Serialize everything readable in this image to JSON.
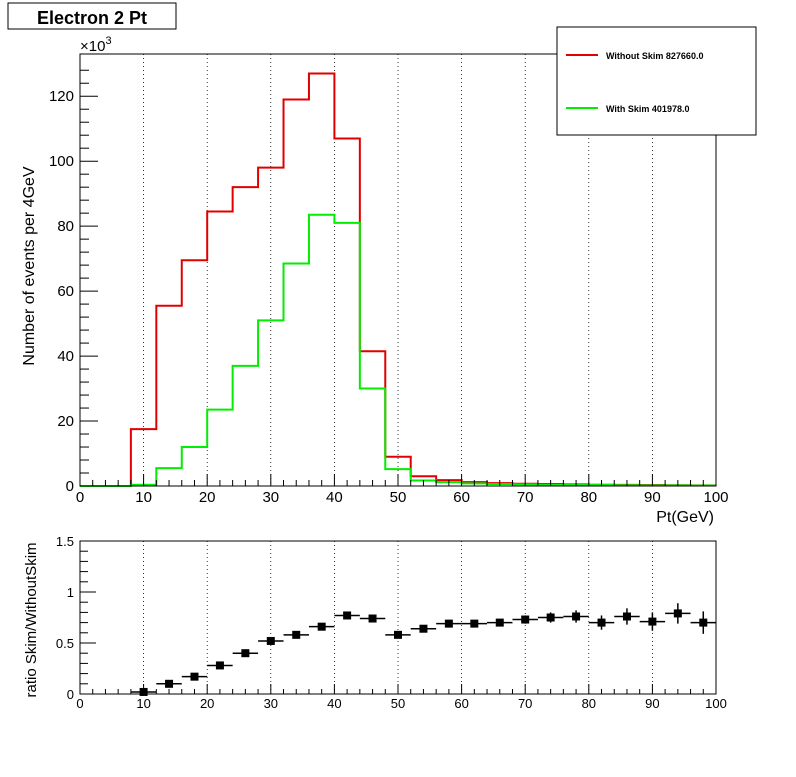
{
  "title": "Electron 2 Pt",
  "top_panel": {
    "xlabel": "Pt(GeV)",
    "ylabel": "Number of events per 4GeV",
    "exponent_base": "×10",
    "exponent_power": "3"
  },
  "bottom_panel": {
    "ylabel": "ratio Skim/WithoutSkim"
  },
  "legend": {
    "entries": [
      {
        "label": "Without Skim 827660.0",
        "color": "#e00000"
      },
      {
        "label": "With Skim 401978.0",
        "color": "#00ee00"
      }
    ]
  },
  "chart_data": [
    {
      "type": "histogram",
      "title": "Electron 2 Pt",
      "xlabel": "Pt(GeV)",
      "ylabel": "Number of events per 4GeV",
      "xlim": [
        0,
        100
      ],
      "ylim": [
        0,
        133000
      ],
      "x_ticks": [
        0,
        10,
        20,
        30,
        40,
        50,
        60,
        70,
        80,
        90,
        100
      ],
      "y_ticks": [
        0,
        20,
        40,
        60,
        80,
        100,
        120
      ],
      "y_scale_label": "×10^3",
      "grid": "vertical-dotted",
      "legend_position": "top-right",
      "bin_width": 4,
      "bin_edges": [
        0,
        4,
        8,
        12,
        16,
        20,
        24,
        28,
        32,
        36,
        40,
        44,
        48,
        52,
        56,
        60,
        64,
        68,
        72,
        76,
        80,
        84,
        88,
        92,
        96,
        100
      ],
      "series": [
        {
          "name": "Without Skim 827660.0",
          "color": "#e00000",
          "values": [
            0,
            0,
            17500,
            55500,
            69500,
            84500,
            92000,
            98000,
            119000,
            127000,
            107000,
            41500,
            9000,
            3000,
            1800,
            1200,
            900,
            700,
            600,
            500,
            400,
            350,
            300,
            250,
            200
          ]
        },
        {
          "name": "With Skim 401978.0",
          "color": "#00ee00",
          "values": [
            0,
            0,
            400,
            5500,
            12000,
            23500,
            37000,
            51000,
            68500,
            83500,
            81000,
            30000,
            5200,
            1700,
            1200,
            800,
            600,
            500,
            400,
            350,
            300,
            250,
            200,
            180,
            150
          ]
        }
      ]
    },
    {
      "type": "scatter",
      "ylabel": "ratio Skim/WithoutSkim",
      "xlim": [
        0,
        100
      ],
      "ylim": [
        0,
        1.5
      ],
      "x_ticks": [
        0,
        10,
        20,
        30,
        40,
        50,
        60,
        70,
        80,
        90,
        100
      ],
      "y_ticks": [
        0,
        0.5,
        1,
        1.5
      ],
      "grid": "vertical-dotted",
      "x_err": 2,
      "points": [
        {
          "x": 10,
          "y": 0.02,
          "yerr": 0.01
        },
        {
          "x": 14,
          "y": 0.1,
          "yerr": 0.01
        },
        {
          "x": 18,
          "y": 0.17,
          "yerr": 0.01
        },
        {
          "x": 22,
          "y": 0.28,
          "yerr": 0.01
        },
        {
          "x": 26,
          "y": 0.4,
          "yerr": 0.01
        },
        {
          "x": 30,
          "y": 0.52,
          "yerr": 0.01
        },
        {
          "x": 34,
          "y": 0.58,
          "yerr": 0.01
        },
        {
          "x": 38,
          "y": 0.66,
          "yerr": 0.01
        },
        {
          "x": 42,
          "y": 0.77,
          "yerr": 0.01
        },
        {
          "x": 46,
          "y": 0.74,
          "yerr": 0.01
        },
        {
          "x": 50,
          "y": 0.58,
          "yerr": 0.02
        },
        {
          "x": 54,
          "y": 0.64,
          "yerr": 0.02
        },
        {
          "x": 58,
          "y": 0.69,
          "yerr": 0.02
        },
        {
          "x": 62,
          "y": 0.69,
          "yerr": 0.02
        },
        {
          "x": 66,
          "y": 0.7,
          "yerr": 0.03
        },
        {
          "x": 70,
          "y": 0.73,
          "yerr": 0.04
        },
        {
          "x": 74,
          "y": 0.75,
          "yerr": 0.05
        },
        {
          "x": 78,
          "y": 0.76,
          "yerr": 0.06
        },
        {
          "x": 82,
          "y": 0.7,
          "yerr": 0.07
        },
        {
          "x": 86,
          "y": 0.76,
          "yerr": 0.08
        },
        {
          "x": 90,
          "y": 0.71,
          "yerr": 0.09
        },
        {
          "x": 94,
          "y": 0.79,
          "yerr": 0.1
        },
        {
          "x": 98,
          "y": 0.7,
          "yerr": 0.11
        }
      ]
    }
  ]
}
